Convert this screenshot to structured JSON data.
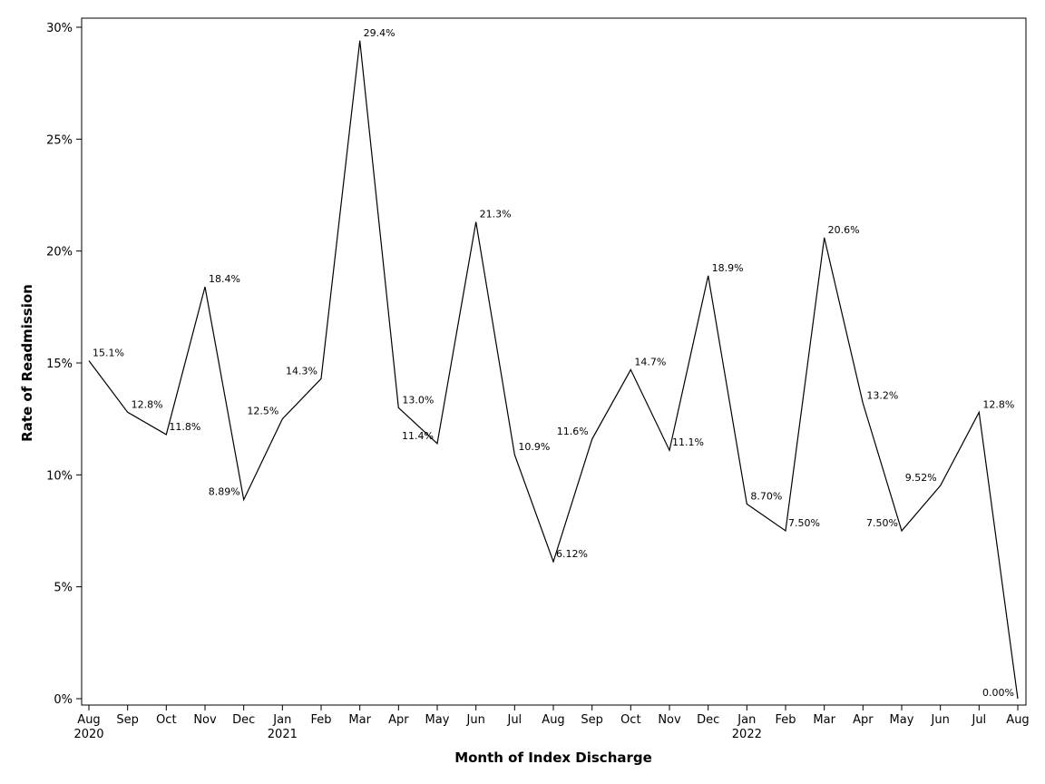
{
  "chart_data": {
    "type": "line",
    "title": "",
    "xlabel": "Month of Index Discharge",
    "ylabel": "Rate of Readmission",
    "ylim": [
      0,
      30
    ],
    "yticks": [
      0,
      5,
      10,
      15,
      20,
      25,
      30
    ],
    "ytick_labels": [
      "0%",
      "5%",
      "10%",
      "15%",
      "20%",
      "25%",
      "30%"
    ],
    "grid": false,
    "legend": "none",
    "categories": [
      "Aug",
      "Sep",
      "Oct",
      "Nov",
      "Dec",
      "Jan",
      "Feb",
      "Mar",
      "Apr",
      "May",
      "Jun",
      "Jul",
      "Aug",
      "Sep",
      "Oct",
      "Nov",
      "Dec",
      "Jan",
      "Feb",
      "Mar",
      "Apr",
      "May",
      "Jun",
      "Jul",
      "Aug"
    ],
    "year_labels": [
      "2020",
      "",
      "",
      "",
      "",
      "2021",
      "",
      "",
      "",
      "",
      "",
      "",
      "",
      "",
      "",
      "",
      "",
      "2022",
      "",
      "",
      "",
      "",
      "",
      "",
      ""
    ],
    "values": [
      15.1,
      12.8,
      11.8,
      18.4,
      8.89,
      12.5,
      14.3,
      29.4,
      13.0,
      11.4,
      21.3,
      10.9,
      6.12,
      11.6,
      14.7,
      11.1,
      18.9,
      8.7,
      7.5,
      20.6,
      13.2,
      7.5,
      9.52,
      12.8,
      0.0
    ],
    "data_labels": [
      "15.1%",
      "12.8%",
      "11.8%",
      "18.4%",
      "8.89%",
      "12.5%",
      "14.3%",
      "29.4%",
      "13.0%",
      "11.4%",
      "21.3%",
      "10.9%",
      "6.12%",
      "11.6%",
      "14.7%",
      "11.1%",
      "18.9%",
      "8.70%",
      "7.50%",
      "20.6%",
      "13.2%",
      "7.50%",
      "9.52%",
      "12.8%",
      "0.00%"
    ],
    "line_color": "#000000"
  }
}
